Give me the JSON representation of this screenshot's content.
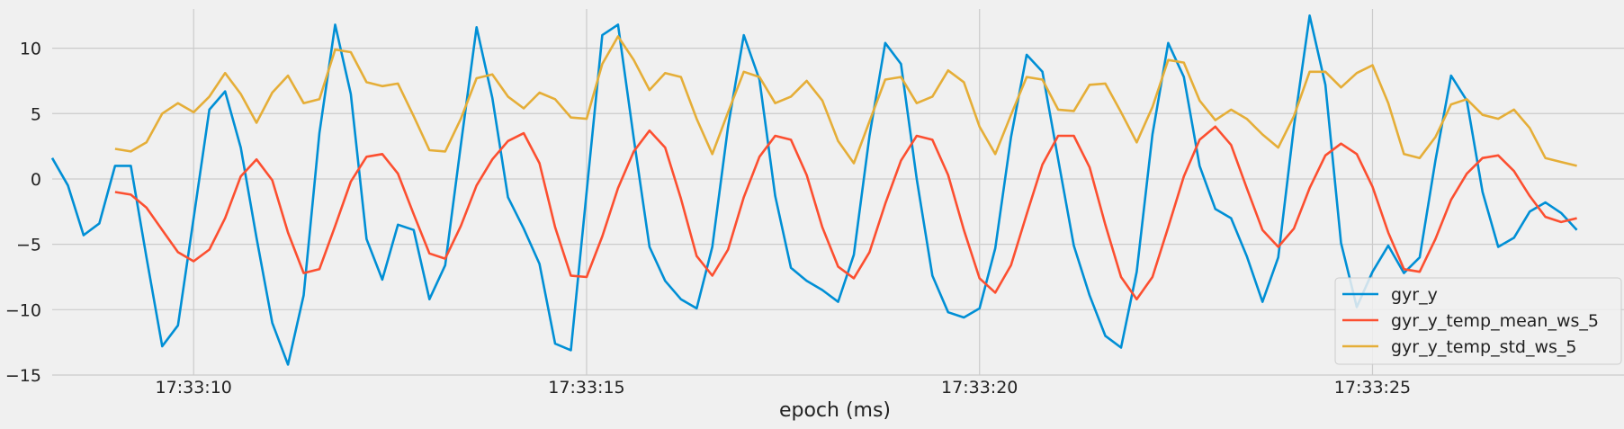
{
  "chart_data": {
    "type": "line",
    "title": "",
    "xlabel": "epoch (ms)",
    "ylabel": "",
    "x_start": "17:33:08.2",
    "x_step_s": 0.2,
    "x_ticks": [
      "17:33:10",
      "17:33:15",
      "17:33:20",
      "17:33:25"
    ],
    "xlim": [
      "17:33:08.2",
      "17:33:28.2"
    ],
    "y_ticks": [
      10,
      5,
      0,
      -5,
      -10,
      -15
    ],
    "ylim": [
      -15,
      13
    ],
    "grid": true,
    "legend_position": "lower-right",
    "series": [
      {
        "name": "gyr_y",
        "color": "#008fd5",
        "values": [
          1.6,
          -0.5,
          -4.3,
          -3.4,
          1.0,
          1.0,
          -6.0,
          -12.8,
          -11.2,
          -3.0,
          5.3,
          6.7,
          2.4,
          -4.5,
          -11.0,
          -14.2,
          -8.9,
          3.5,
          11.8,
          6.5,
          -4.6,
          -7.7,
          -3.5,
          -3.9,
          -9.2,
          -6.6,
          2.6,
          11.6,
          6.2,
          -1.4,
          -3.8,
          -6.5,
          -12.6,
          -13.1,
          -1.0,
          11.0,
          11.8,
          3.1,
          -5.2,
          -7.8,
          -9.2,
          -9.9,
          -5.2,
          4.0,
          11.0,
          7.6,
          -1.3,
          -6.8,
          -7.8,
          -8.5,
          -9.4,
          -5.8,
          3.3,
          10.4,
          8.8,
          0.0,
          -7.4,
          -10.2,
          -10.6,
          -9.9,
          -5.3,
          3.2,
          9.5,
          8.2,
          1.5,
          -5.1,
          -8.9,
          -12.0,
          -12.9,
          -7.1,
          3.4,
          10.4,
          7.8,
          1.0,
          -2.3,
          -3.0,
          -5.9,
          -9.4,
          -6.0,
          4.0,
          12.5,
          7.2,
          -4.9,
          -9.8,
          -7.1,
          -5.1,
          -7.2,
          -6.0,
          1.4,
          7.9,
          6.0,
          -1.0,
          -5.2,
          -4.5,
          -2.5,
          -1.8,
          -2.6,
          -3.9
        ]
      },
      {
        "name": "gyr_y_temp_mean_ws_5",
        "color": "#fc4f30",
        "values": [
          null,
          null,
          null,
          null,
          -1.0,
          -1.2,
          -2.2,
          -3.9,
          -5.6,
          -6.3,
          -5.4,
          -3.0,
          0.2,
          1.5,
          -0.1,
          -4.1,
          -7.2,
          -6.9,
          -3.6,
          -0.2,
          1.7,
          1.9,
          0.4,
          -2.7,
          -5.7,
          -6.1,
          -3.6,
          -0.5,
          1.5,
          2.9,
          3.5,
          1.2,
          -3.7,
          -7.4,
          -7.5,
          -4.4,
          -0.7,
          2.1,
          3.7,
          2.4,
          -1.5,
          -5.9,
          -7.4,
          -5.4,
          -1.4,
          1.7,
          3.3,
          3.0,
          0.3,
          -3.7,
          -6.7,
          -7.6,
          -5.6,
          -1.9,
          1.4,
          3.3,
          3.0,
          0.3,
          -3.9,
          -7.6,
          -8.7,
          -6.6,
          -2.7,
          1.1,
          3.3,
          3.3,
          0.9,
          -3.5,
          -7.5,
          -9.2,
          -7.5,
          -3.7,
          0.2,
          3.0,
          4.0,
          2.6,
          -0.7,
          -3.9,
          -5.2,
          -3.8,
          -0.7,
          1.8,
          2.7,
          1.9,
          -0.6,
          -4.1,
          -6.9,
          -7.1,
          -4.6,
          -1.6,
          0.4,
          1.6,
          1.8,
          0.6,
          -1.3,
          -2.9,
          -3.3,
          -3.0
        ]
      },
      {
        "name": "gyr_y_temp_std_ws_5",
        "color": "#e5ae38",
        "values": [
          null,
          null,
          null,
          null,
          2.3,
          2.1,
          2.8,
          5.0,
          5.8,
          5.1,
          6.3,
          8.1,
          6.5,
          4.3,
          6.6,
          7.9,
          5.8,
          6.1,
          9.9,
          9.7,
          7.4,
          7.1,
          7.3,
          4.8,
          2.2,
          2.1,
          4.6,
          7.7,
          8.0,
          6.3,
          5.4,
          6.6,
          6.1,
          4.7,
          4.6,
          8.8,
          10.9,
          9.1,
          6.8,
          8.1,
          7.8,
          4.6,
          1.9,
          5.1,
          8.2,
          7.8,
          5.8,
          6.3,
          7.5,
          6.0,
          2.9,
          1.2,
          4.4,
          7.6,
          7.8,
          5.8,
          6.3,
          8.3,
          7.4,
          4.0,
          1.9,
          4.9,
          7.8,
          7.6,
          5.3,
          5.2,
          7.2,
          7.3,
          5.1,
          2.8,
          5.5,
          9.1,
          8.9,
          6.0,
          4.5,
          5.3,
          4.6,
          3.4,
          2.4,
          4.8,
          8.2,
          8.2,
          7.0,
          8.1,
          8.7,
          5.8,
          1.9,
          1.6,
          3.2,
          5.7,
          6.1,
          4.9,
          4.6,
          5.3,
          3.9,
          1.6,
          1.3,
          1.0
        ]
      }
    ]
  }
}
